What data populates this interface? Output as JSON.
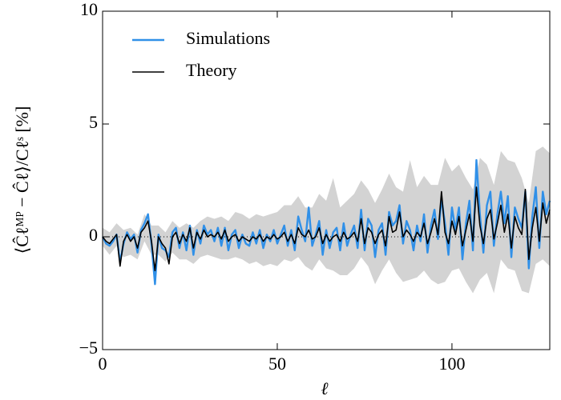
{
  "chart_data": {
    "type": "line",
    "xlabel": "ℓ",
    "ylabel": "⟨Ĉℓᴹᴾ − Ĉℓ⟩/Cℓˢ [%]",
    "xlim": [
      0,
      128
    ],
    "ylim": [
      -5,
      10
    ],
    "xticks": [
      0,
      50,
      100
    ],
    "yticks": [
      {
        "value": -5,
        "label": "−5"
      },
      0,
      5,
      10
    ],
    "reference_line": 0,
    "legend": "upper left",
    "x": [
      0,
      1,
      2,
      3,
      4,
      5,
      6,
      7,
      8,
      9,
      10,
      11,
      12,
      13,
      14,
      15,
      16,
      17,
      18,
      19,
      20,
      21,
      22,
      23,
      24,
      25,
      26,
      27,
      28,
      29,
      30,
      31,
      32,
      33,
      34,
      35,
      36,
      37,
      38,
      39,
      40,
      41,
      42,
      43,
      44,
      45,
      46,
      47,
      48,
      49,
      50,
      51,
      52,
      53,
      54,
      55,
      56,
      57,
      58,
      59,
      60,
      61,
      62,
      63,
      64,
      65,
      66,
      67,
      68,
      69,
      70,
      71,
      72,
      73,
      74,
      75,
      76,
      77,
      78,
      79,
      80,
      81,
      82,
      83,
      84,
      85,
      86,
      87,
      88,
      89,
      90,
      91,
      92,
      93,
      94,
      95,
      96,
      97,
      98,
      99,
      100,
      101,
      102,
      103,
      104,
      105,
      106,
      107,
      108,
      109,
      110,
      111,
      112,
      113,
      114,
      115,
      116,
      117,
      118,
      119,
      120,
      121,
      122,
      123,
      124,
      125,
      126,
      127,
      128
    ],
    "series": [
      {
        "name": "Simulations",
        "color": "#3090e8",
        "values": [
          0,
          -0.3,
          -0.4,
          -0.2,
          0.1,
          -1.1,
          -0.3,
          0.2,
          -0.1,
          0.1,
          -0.7,
          0.3,
          0.6,
          1.0,
          -0.3,
          -2.1,
          0.1,
          -0.5,
          -0.6,
          -0.9,
          0.2,
          0.4,
          -0.5,
          0.2,
          -0.6,
          0.5,
          -0.8,
          0.3,
          -0.3,
          0.5,
          0.1,
          0.3,
          -0.2,
          0.4,
          -0.4,
          0.4,
          -0.6,
          0.1,
          0.3,
          -0.5,
          0.1,
          -0.3,
          -0.4,
          0.2,
          -0.3,
          0.3,
          -0.5,
          0.1,
          -0.2,
          0.3,
          -0.3,
          0.1,
          0.5,
          -0.4,
          0.3,
          -0.6,
          0.9,
          0.3,
          -0.2,
          1.3,
          -0.4,
          0.1,
          0.7,
          -0.8,
          0.3,
          -0.5,
          0.2,
          0.4,
          -0.6,
          0.6,
          -0.4,
          0.1,
          0.5,
          -0.5,
          1.2,
          -0.6,
          0.8,
          0.5,
          -0.9,
          0.3,
          0.6,
          -0.8,
          1.1,
          0.5,
          0.7,
          1.4,
          -0.3,
          0.7,
          0.3,
          -0.6,
          0.5,
          -0.2,
          1.0,
          -0.7,
          0.5,
          1.2,
          -0.1,
          1.7,
          0.6,
          -0.8,
          1.3,
          0.3,
          1.3,
          -1.0,
          0.6,
          1.6,
          -0.6,
          3.4,
          1.0,
          -0.7,
          1.4,
          2.0,
          -0.4,
          1.0,
          2.0,
          0.6,
          1.8,
          -0.9,
          1.3,
          0.8,
          0.4,
          2.0,
          -1.4,
          0.9,
          2.2,
          -0.5,
          2.0,
          1.0,
          1.6
        ]
      },
      {
        "name": "Theory",
        "color": "#000000",
        "values": [
          0,
          -0.2,
          -0.3,
          -0.1,
          0.1,
          -1.3,
          -0.2,
          0.1,
          -0.2,
          0,
          -0.5,
          0.2,
          0.4,
          0.7,
          -0.2,
          -1.5,
          0,
          -0.3,
          -0.5,
          -1.2,
          0,
          0.2,
          -0.3,
          0.1,
          -0.2,
          0.4,
          -0.5,
          0.2,
          -0.1,
          0.3,
          0,
          0.1,
          0,
          0.2,
          -0.1,
          0.3,
          -0.2,
          0,
          0.1,
          -0.2,
          0,
          -0.1,
          -0.2,
          0,
          -0.1,
          0.1,
          -0.2,
          0,
          -0.1,
          0.1,
          -0.1,
          0,
          0.2,
          -0.2,
          0.1,
          -0.3,
          0.4,
          0.1,
          0,
          0.3,
          -0.1,
          0,
          0.4,
          -0.3,
          0.1,
          -0.2,
          0,
          0.1,
          -0.2,
          0.2,
          -0.1,
          0,
          0.2,
          -0.2,
          0.8,
          -0.3,
          0.4,
          0.2,
          -0.3,
          0.1,
          0.3,
          -0.4,
          0.9,
          0.2,
          0.3,
          1.1,
          0,
          0.3,
          0.1,
          -0.2,
          0.2,
          0,
          0.6,
          -0.3,
          0.2,
          0.8,
          0.1,
          2.0,
          0.2,
          -0.3,
          0.7,
          0.1,
          0.9,
          -0.4,
          0.3,
          1.0,
          -0.2,
          2.2,
          0.5,
          -0.3,
          0.8,
          1.2,
          -0.1,
          0.6,
          1.4,
          0.2,
          1.0,
          -0.5,
          0.9,
          0.4,
          0.1,
          2.1,
          -1.0,
          0.4,
          1.3,
          -0.2,
          1.5,
          0.6,
          1.2
        ]
      }
    ],
    "band": {
      "color": "#d3d3d3",
      "x": [
        0,
        2,
        4,
        6,
        8,
        10,
        12,
        14,
        16,
        18,
        20,
        22,
        24,
        26,
        28,
        30,
        32,
        34,
        36,
        38,
        40,
        42,
        44,
        46,
        48,
        50,
        52,
        54,
        56,
        58,
        60,
        62,
        64,
        66,
        68,
        70,
        72,
        74,
        76,
        78,
        80,
        82,
        84,
        86,
        88,
        90,
        92,
        94,
        96,
        98,
        100,
        102,
        104,
        106,
        108,
        110,
        112,
        114,
        116,
        118,
        120,
        122,
        124,
        126,
        128
      ],
      "lower": [
        -0.4,
        -0.8,
        -0.4,
        -0.9,
        -0.8,
        -1.0,
        -0.2,
        -0.8,
        -0.8,
        -1.1,
        -0.7,
        -1.0,
        -1.0,
        -1.2,
        -0.9,
        -0.8,
        -0.9,
        -1.0,
        -1.0,
        -0.9,
        -1.0,
        -1.2,
        -1.1,
        -1.3,
        -1.2,
        -1.3,
        -1.0,
        -1.1,
        -0.9,
        -1.3,
        -1.5,
        -1.0,
        -1.4,
        -1.5,
        -1.7,
        -1.7,
        -1.4,
        -0.9,
        -1.3,
        -2.1,
        -1.5,
        -1.0,
        -1.6,
        -2.0,
        -1.9,
        -1.8,
        -1.5,
        -1.9,
        -2.1,
        -2.0,
        -1.5,
        -1.4,
        -2.0,
        -2.5,
        -1.9,
        -1.6,
        -2.5,
        -1.0,
        -1.4,
        -1.5,
        -2.4,
        -2.5,
        -1.2,
        -1.0,
        -1.3
      ],
      "upper": [
        0.4,
        0.2,
        0.6,
        0.3,
        0.4,
        0.1,
        1.0,
        0.5,
        0.5,
        0.2,
        0.7,
        0.4,
        0.6,
        0.4,
        0.7,
        0.9,
        0.8,
        0.9,
        0.7,
        1.1,
        1.0,
        0.8,
        1.0,
        0.9,
        1.0,
        1.1,
        1.4,
        1.4,
        1.8,
        1.3,
        1.3,
        1.9,
        1.6,
        2.6,
        1.3,
        1.6,
        1.9,
        2.5,
        2.1,
        1.5,
        2.1,
        2.8,
        2.2,
        2.0,
        3.4,
        2.2,
        2.7,
        2.3,
        2.3,
        3.5,
        2.9,
        3.2,
        2.6,
        2.1,
        3.5,
        3.2,
        2.3,
        3.8,
        3.4,
        3.3,
        2.6,
        1.5,
        3.8,
        4.0,
        3.7
      ]
    }
  }
}
